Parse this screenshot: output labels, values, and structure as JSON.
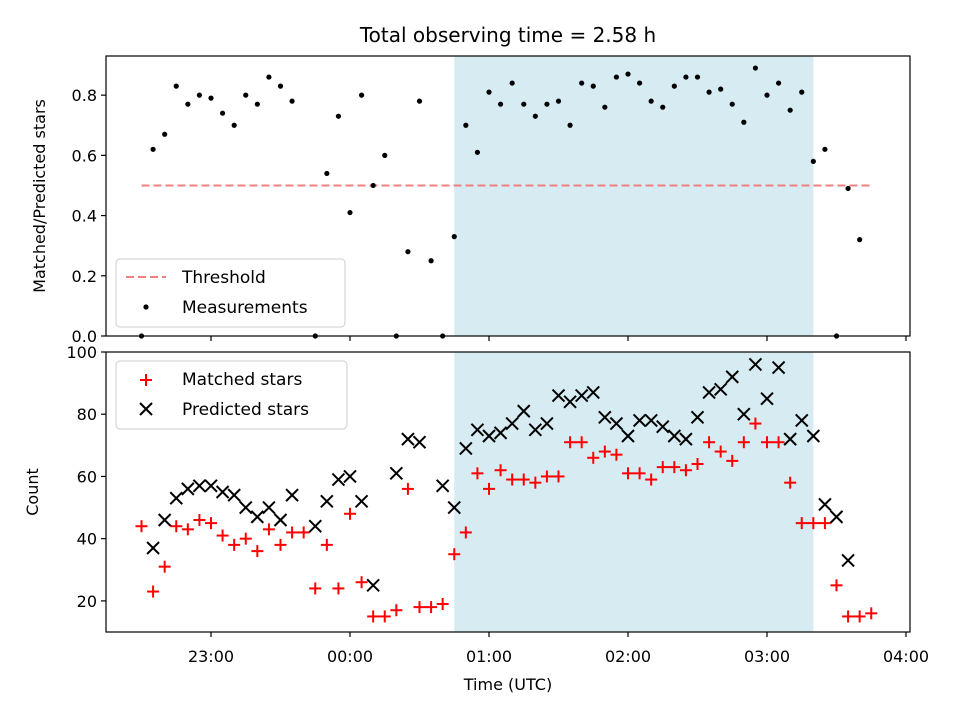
{
  "chart_data": {
    "type": "scatter",
    "title": "Total observing time = 2.58 h",
    "xlabel": "Time (UTC)",
    "x_ticks": [
      "23:00",
      "00:00",
      "01:00",
      "02:00",
      "03:00",
      "04:00"
    ],
    "shaded_interval": {
      "start": "00:45",
      "end": "03:20",
      "color": "#add8e6"
    },
    "top_panel": {
      "ylabel": "Matched/Predicted stars",
      "ylim": [
        0,
        0.93
      ],
      "yticks": [
        "0.0",
        "0.2",
        "0.4",
        "0.6",
        "0.8"
      ],
      "legend": {
        "position": "lower-left",
        "entries": [
          "Threshold",
          "Measurements"
        ]
      },
      "threshold": {
        "name": "Threshold",
        "value": 0.5,
        "x_range": [
          "22:30",
          "03:45"
        ],
        "color": "#f08080",
        "style": "dashed"
      },
      "measurements": {
        "name": "Measurements",
        "color": "#000000",
        "x": [
          "22:30",
          "22:35",
          "22:40",
          "22:45",
          "22:50",
          "22:55",
          "23:00",
          "23:05",
          "23:10",
          "23:15",
          "23:20",
          "23:25",
          "23:30",
          "23:35",
          "23:45",
          "23:50",
          "23:55",
          "00:00",
          "00:05",
          "00:10",
          "00:15",
          "00:20",
          "00:25",
          "00:30",
          "00:35",
          "00:40",
          "00:45",
          "00:50",
          "00:55",
          "01:00",
          "01:05",
          "01:10",
          "01:15",
          "01:20",
          "01:25",
          "01:30",
          "01:35",
          "01:40",
          "01:45",
          "01:50",
          "01:55",
          "02:00",
          "02:05",
          "02:10",
          "02:15",
          "02:20",
          "02:25",
          "02:30",
          "02:35",
          "02:40",
          "02:45",
          "02:50",
          "02:55",
          "03:00",
          "03:05",
          "03:10",
          "03:15",
          "03:20",
          "03:25",
          "03:30",
          "03:35",
          "03:40"
        ],
        "y": [
          0.0,
          0.62,
          0.67,
          0.83,
          0.77,
          0.8,
          0.79,
          0.74,
          0.7,
          0.8,
          0.77,
          0.86,
          0.83,
          0.78,
          0.0,
          0.54,
          0.73,
          0.41,
          0.8,
          0.5,
          0.6,
          0.0,
          0.28,
          0.78,
          0.25,
          0.0,
          0.33,
          0.7,
          0.61,
          0.81,
          0.77,
          0.84,
          0.77,
          0.73,
          0.77,
          0.78,
          0.7,
          0.84,
          0.83,
          0.76,
          0.86,
          0.87,
          0.84,
          0.78,
          0.76,
          0.83,
          0.86,
          0.86,
          0.81,
          0.82,
          0.77,
          0.71,
          0.89,
          0.8,
          0.84,
          0.75,
          0.81,
          0.58,
          0.62,
          0.0,
          0.49,
          0.32
        ]
      }
    },
    "bottom_panel": {
      "ylabel": "Count",
      "ylim": [
        10,
        100
      ],
      "yticks": [
        "20",
        "40",
        "60",
        "80",
        "100"
      ],
      "legend": {
        "position": "upper-left",
        "entries": [
          "Matched stars",
          "Predicted stars"
        ]
      },
      "series": [
        {
          "name": "Matched stars",
          "marker": "+",
          "color": "#ff0000",
          "x": [
            "22:30",
            "22:35",
            "22:40",
            "22:45",
            "22:50",
            "22:55",
            "23:00",
            "23:05",
            "23:10",
            "23:15",
            "23:20",
            "23:25",
            "23:30",
            "23:35",
            "23:40",
            "23:45",
            "23:50",
            "23:55",
            "00:00",
            "00:05",
            "00:10",
            "00:15",
            "00:20",
            "00:25",
            "00:30",
            "00:35",
            "00:40",
            "00:45",
            "00:50",
            "00:55",
            "01:00",
            "01:05",
            "01:10",
            "01:15",
            "01:20",
            "01:25",
            "01:30",
            "01:35",
            "01:40",
            "01:45",
            "01:50",
            "01:55",
            "02:00",
            "02:05",
            "02:10",
            "02:15",
            "02:20",
            "02:25",
            "02:30",
            "02:35",
            "02:40",
            "02:45",
            "02:50",
            "02:55",
            "03:00",
            "03:05",
            "03:10",
            "03:15",
            "03:20",
            "03:25",
            "03:30",
            "03:35",
            "03:40",
            "03:45"
          ],
          "y": [
            44,
            23,
            31,
            44,
            43,
            46,
            45,
            41,
            38,
            40,
            36,
            43,
            38,
            42,
            42,
            24,
            38,
            24,
            48,
            26,
            15,
            15,
            17,
            56,
            18,
            18,
            19,
            35,
            42,
            61,
            56,
            62,
            59,
            59,
            58,
            60,
            60,
            71,
            71,
            66,
            68,
            67,
            61,
            61,
            59,
            63,
            63,
            62,
            64,
            71,
            68,
            65,
            71,
            77,
            71,
            71,
            58,
            45,
            45,
            45,
            25,
            15,
            15,
            16
          ]
        },
        {
          "name": "Predicted stars",
          "marker": "x",
          "color": "#000000",
          "x": [
            "22:35",
            "22:40",
            "22:45",
            "22:50",
            "22:55",
            "23:00",
            "23:05",
            "23:10",
            "23:15",
            "23:20",
            "23:25",
            "23:30",
            "23:35",
            "23:45",
            "23:50",
            "23:55",
            "00:00",
            "00:05",
            "00:10",
            "00:20",
            "00:25",
            "00:30",
            "00:40",
            "00:45",
            "00:50",
            "00:55",
            "01:00",
            "01:05",
            "01:10",
            "01:15",
            "01:20",
            "01:25",
            "01:30",
            "01:35",
            "01:40",
            "01:45",
            "01:50",
            "01:55",
            "02:00",
            "02:05",
            "02:10",
            "02:15",
            "02:20",
            "02:25",
            "02:30",
            "02:35",
            "02:40",
            "02:45",
            "02:50",
            "02:55",
            "03:00",
            "03:05",
            "03:10",
            "03:15",
            "03:20",
            "03:25",
            "03:30",
            "03:35",
            "03:40"
          ],
          "y": [
            37,
            46,
            53,
            56,
            57,
            57,
            55,
            54,
            50,
            47,
            50,
            46,
            54,
            44,
            52,
            59,
            60,
            52,
            25,
            61,
            72,
            71,
            57,
            50,
            69,
            75,
            73,
            74,
            77,
            81,
            75,
            77,
            86,
            84,
            86,
            87,
            79,
            77,
            73,
            78,
            78,
            76,
            73,
            72,
            79,
            87,
            88,
            92,
            80,
            96,
            85,
            95,
            72,
            78,
            73,
            51,
            47,
            33,
            null
          ]
        }
      ]
    }
  }
}
